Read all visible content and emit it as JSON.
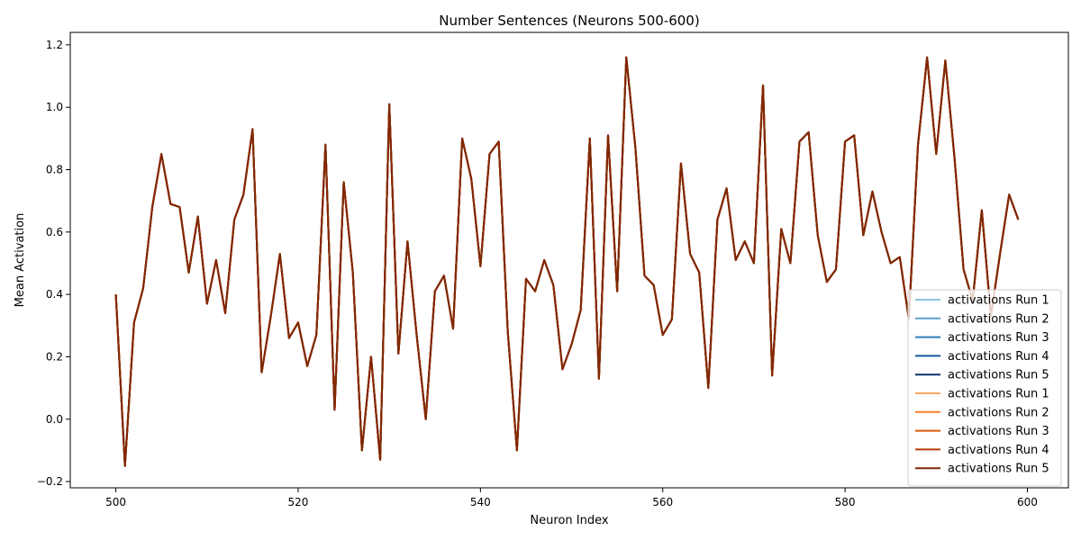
{
  "chart_data": {
    "type": "line",
    "title": "Number Sentences (Neurons 500-600)",
    "xlabel": "Neuron Index",
    "ylabel": "Mean Activation",
    "xlim": [
      495,
      604.5
    ],
    "ylim": [
      -0.22,
      1.24
    ],
    "xticks": [
      500,
      520,
      540,
      560,
      580,
      600
    ],
    "yticks": [
      -0.2,
      0.0,
      0.2,
      0.4,
      0.6,
      0.8,
      1.0,
      1.2
    ],
    "xtick_labels": [
      "500",
      "520",
      "540",
      "560",
      "580",
      "600"
    ],
    "ytick_labels": [
      "−0.2",
      "0.0",
      "0.2",
      "0.4",
      "0.6",
      "0.8",
      "1.0",
      "1.2"
    ],
    "grid": false,
    "legend_position": "lower-right",
    "x": [
      500,
      501,
      502,
      503,
      504,
      505,
      506,
      507,
      508,
      509,
      510,
      511,
      512,
      513,
      514,
      515,
      516,
      517,
      518,
      519,
      520,
      521,
      522,
      523,
      524,
      525,
      526,
      527,
      528,
      529,
      530,
      531,
      532,
      533,
      534,
      535,
      536,
      537,
      538,
      539,
      540,
      541,
      542,
      543,
      544,
      545,
      546,
      547,
      548,
      549,
      550,
      551,
      552,
      553,
      554,
      555,
      556,
      557,
      558,
      559,
      560,
      561,
      562,
      563,
      564,
      565,
      566,
      567,
      568,
      569,
      570,
      571,
      572,
      573,
      574,
      575,
      576,
      577,
      578,
      579,
      580,
      581,
      582,
      583,
      584,
      585,
      586,
      587,
      588,
      589,
      590,
      591,
      592,
      593,
      594,
      595,
      596,
      597,
      598,
      599
    ],
    "base_values": [
      0.4,
      -0.15,
      0.31,
      0.42,
      0.68,
      0.85,
      0.69,
      0.68,
      0.47,
      0.65,
      0.37,
      0.51,
      0.34,
      0.64,
      0.72,
      0.93,
      0.15,
      0.33,
      0.53,
      0.26,
      0.31,
      0.17,
      0.27,
      0.88,
      0.03,
      0.76,
      0.47,
      -0.1,
      0.2,
      -0.13,
      1.01,
      0.21,
      0.57,
      0.27,
      0.0,
      0.41,
      0.46,
      0.29,
      0.9,
      0.77,
      0.49,
      0.85,
      0.89,
      0.28,
      -0.1,
      0.45,
      0.41,
      0.51,
      0.43,
      0.16,
      0.24,
      0.35,
      0.9,
      0.13,
      0.91,
      0.41,
      1.16,
      0.87,
      0.46,
      0.43,
      0.27,
      0.32,
      0.82,
      0.53,
      0.47,
      0.1,
      0.64,
      0.74,
      0.51,
      0.57,
      0.5,
      1.07,
      0.14,
      0.61,
      0.5,
      0.89,
      0.92,
      0.59,
      0.44,
      0.48,
      0.89,
      0.91,
      0.59,
      0.73,
      0.6,
      0.5,
      0.52,
      0.32,
      0.88,
      1.16,
      0.85,
      1.15,
      0.84,
      0.48,
      0.38,
      0.67,
      0.33,
      0.53,
      0.72,
      0.64
    ],
    "series": [
      {
        "name": "activations Run 1",
        "color": "#8ec3e0"
      },
      {
        "name": "activations Run 2",
        "color": "#5a9fce"
      },
      {
        "name": "activations Run 3",
        "color": "#2d7dbb"
      },
      {
        "name": "activations Run 4",
        "color": "#12579c"
      },
      {
        "name": "activations Run 5",
        "color": "#0a306b"
      },
      {
        "name": "activations Run 1",
        "color": "#fda863"
      },
      {
        "name": "activations Run 2",
        "color": "#f67f2c"
      },
      {
        "name": "activations Run 3",
        "color": "#de5a0c"
      },
      {
        "name": "activations Run 4",
        "color": "#b63d05"
      },
      {
        "name": "activations Run 5",
        "color": "#7f2704"
      }
    ]
  }
}
